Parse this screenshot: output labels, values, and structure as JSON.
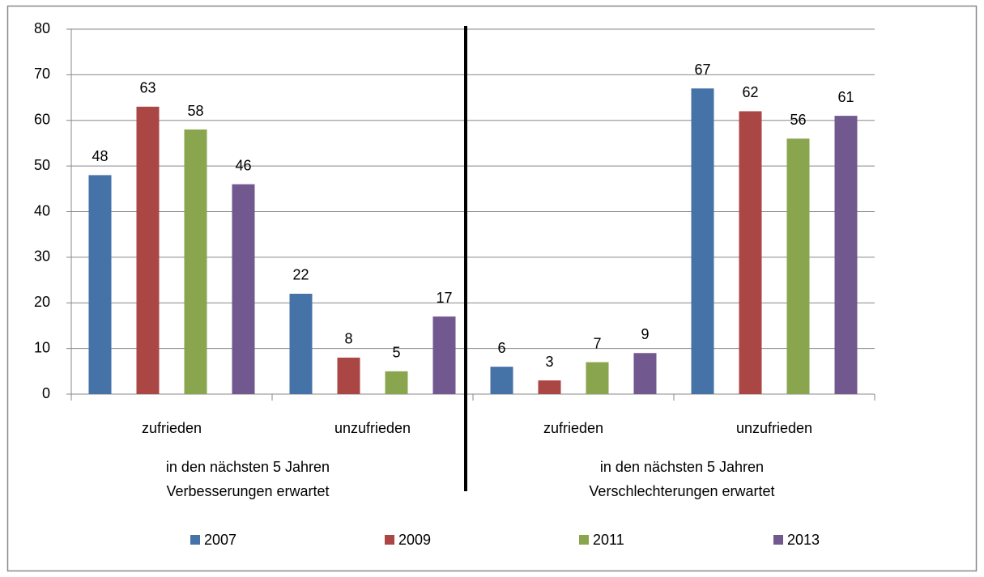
{
  "chart_data": {
    "type": "bar",
    "categories": [
      "zufrieden",
      "unzufrieden",
      "zufrieden",
      "unzufrieden"
    ],
    "groups": [
      [
        "in den nächsten 5 Jahren",
        "Verbesserungen erwartet"
      ],
      [
        "in den nächsten 5 Jahren",
        "Verschlechterungen erwartet"
      ]
    ],
    "series": [
      {
        "name": "2007",
        "color": "#4572a7",
        "values": [
          48,
          22,
          6,
          67
        ]
      },
      {
        "name": "2009",
        "color": "#aa4643",
        "values": [
          63,
          8,
          3,
          62
        ]
      },
      {
        "name": "2011",
        "color": "#89a54e",
        "values": [
          58,
          5,
          7,
          56
        ]
      },
      {
        "name": "2013",
        "color": "#71588f",
        "values": [
          46,
          17,
          9,
          61
        ]
      }
    ],
    "ylim": [
      0,
      80
    ],
    "yticks": [
      0,
      10,
      20,
      30,
      40,
      50,
      60,
      70,
      80
    ],
    "grid": true,
    "legend": "bottom"
  }
}
